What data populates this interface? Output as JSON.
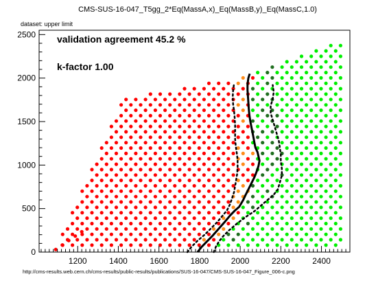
{
  "chart_data": {
    "type": "scatter",
    "title": "CMS-SUS-16-047_T5gg_2*Eq(MassA,x)_Eq(MassB,y)_Eq(MassC,1.0)",
    "dataset_label": "dataset: upper limit",
    "annotations": [
      "validation agreement 45.2 %",
      "k-factor 1.00"
    ],
    "footer": "http://cms-results.web.cern.ch/cms-results/public-results/publications/SUS-16-047/CMS-SUS-16-047_Figure_006-c.png",
    "xlim": [
      1010,
      2540
    ],
    "ylim": [
      0,
      2550
    ],
    "xticks": [
      1200,
      1400,
      1600,
      1800,
      2000,
      2200,
      2400
    ],
    "yticks": [
      0,
      500,
      1000,
      1500,
      2000,
      2500
    ],
    "grid": false,
    "point_classes": [
      {
        "name": "excluded",
        "color": "#ff0000"
      },
      {
        "name": "disagree-excluded",
        "color": "#ff8c1a"
      },
      {
        "name": "disagree-allowed",
        "color": "#1e6e1e"
      },
      {
        "name": "allowed",
        "color": "#00ee00"
      }
    ],
    "boundary_rule": {
      "official": [
        [
          1870,
          0
        ],
        [
          1890,
          100
        ],
        [
          1925,
          220
        ],
        [
          1965,
          350
        ],
        [
          2005,
          500
        ],
        [
          2040,
          650
        ],
        [
          2060,
          800
        ],
        [
          2080,
          950
        ],
        [
          2090,
          1050
        ],
        [
          2070,
          1150
        ],
        [
          2055,
          1300
        ],
        [
          2050,
          1450
        ],
        [
          2048,
          1600
        ],
        [
          2045,
          1750
        ],
        [
          2050,
          1900
        ],
        [
          2070,
          2000
        ],
        [
          2085,
          2060
        ]
      ],
      "inner": [
        [
          1760,
          0
        ],
        [
          1790,
          100
        ],
        [
          1840,
          220
        ],
        [
          1890,
          350
        ],
        [
          1930,
          500
        ],
        [
          1960,
          650
        ],
        [
          1975,
          800
        ],
        [
          1985,
          1000
        ],
        [
          1985,
          1200
        ],
        [
          1975,
          1400
        ],
        [
          1975,
          1600
        ],
        [
          1970,
          1800
        ],
        [
          1965,
          1950
        ]
      ],
      "outer": [
        [
          1960,
          0
        ],
        [
          1990,
          100
        ],
        [
          2030,
          220
        ],
        [
          2080,
          350
        ],
        [
          2130,
          500
        ],
        [
          2180,
          650
        ],
        [
          2200,
          800
        ],
        [
          2215,
          1000
        ],
        [
          2205,
          1200
        ],
        [
          2200,
          1400
        ],
        [
          2180,
          1600
        ],
        [
          2160,
          1750
        ],
        [
          2165,
          1900
        ],
        [
          2175,
          2000
        ]
      ]
    },
    "lines": [
      {
        "name": "official-limit",
        "style": "solid",
        "x": [
          1790,
          1810,
          1835,
          1865,
          1895,
          1925,
          1950,
          1975,
          1995,
          2005,
          2015,
          2025,
          2040,
          2055,
          2070,
          2080,
          2090,
          2095,
          2090,
          2085,
          2075,
          2070,
          2065,
          2060,
          2055,
          2050,
          2045,
          2042,
          2040,
          2038,
          2036,
          2036,
          2040,
          2047
        ],
        "y": [
          0,
          60,
          120,
          190,
          270,
          350,
          420,
          480,
          520,
          560,
          600,
          650,
          720,
          790,
          860,
          920,
          990,
          1050,
          1100,
          1150,
          1200,
          1260,
          1320,
          1380,
          1440,
          1500,
          1580,
          1650,
          1720,
          1790,
          1860,
          1930,
          2000,
          2050
        ]
      },
      {
        "name": "plus-sigma",
        "style": "dotted",
        "x": [
          1870,
          1880,
          1895,
          1915,
          1945,
          1985,
          2025,
          2070,
          2105,
          2135,
          2165,
          2185,
          2195,
          2205,
          2205,
          2200,
          2200,
          2195,
          2190,
          2180,
          2170,
          2160,
          2150,
          2150,
          2160,
          2165,
          2160
        ],
        "y": [
          0,
          60,
          120,
          180,
          250,
          330,
          400,
          470,
          540,
          600,
          660,
          720,
          800,
          880,
          960,
          1040,
          1120,
          1200,
          1280,
          1360,
          1440,
          1520,
          1600,
          1680,
          1760,
          1840,
          1920
        ]
      },
      {
        "name": "minus-sigma",
        "style": "dotted",
        "x": [
          1740,
          1760,
          1790,
          1825,
          1855,
          1885,
          1910,
          1935,
          1950,
          1960,
          1970,
          1975,
          1980,
          1985,
          1987,
          1987,
          1983,
          1978,
          1975,
          1975,
          1975,
          1973,
          1970,
          1965,
          1963,
          1965,
          1970
        ],
        "y": [
          0,
          60,
          130,
          200,
          270,
          340,
          410,
          480,
          550,
          620,
          690,
          760,
          830,
          900,
          980,
          1060,
          1140,
          1220,
          1300,
          1380,
          1460,
          1540,
          1620,
          1700,
          1780,
          1860,
          1940
        ]
      }
    ]
  }
}
